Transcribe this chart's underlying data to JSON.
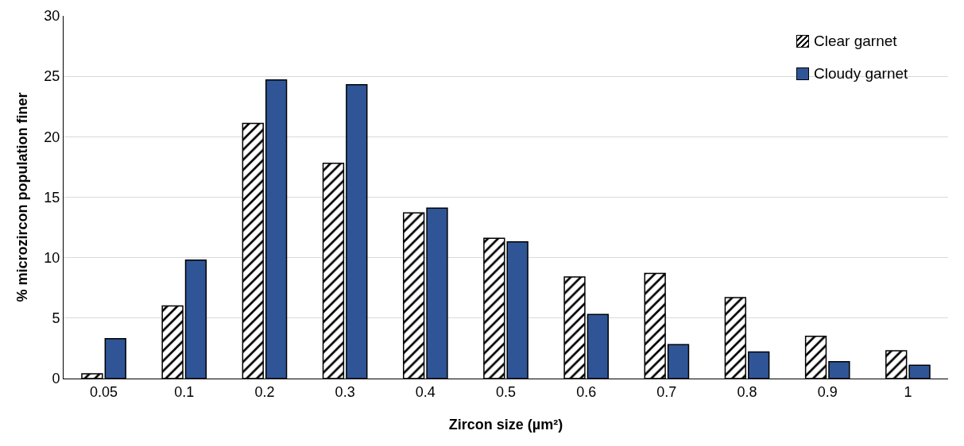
{
  "chart_data": {
    "type": "bar",
    "xlabel": "Zircon size (µm²)",
    "ylabel": "% microzircon population finer",
    "categories": [
      "0.05",
      "0.1",
      "0.2",
      "0.3",
      "0.4",
      "0.5",
      "0.6",
      "0.7",
      "0.8",
      "0.9",
      "1"
    ],
    "series": [
      {
        "name": "Clear garnet",
        "color": "#000000",
        "values": [
          0.4,
          6.0,
          21.1,
          17.8,
          13.7,
          11.6,
          8.4,
          8.7,
          6.7,
          3.5,
          2.3
        ]
      },
      {
        "name": "Cloudy garnet",
        "color": "#2f5597",
        "values": [
          3.3,
          9.8,
          24.7,
          24.3,
          14.1,
          11.3,
          5.3,
          2.8,
          2.2,
          1.4,
          1.1
        ]
      }
    ],
    "ylim": [
      0,
      30
    ],
    "yticks": [
      0,
      5,
      10,
      15,
      20,
      25,
      30
    ],
    "grid": "y",
    "legend": "top right"
  }
}
